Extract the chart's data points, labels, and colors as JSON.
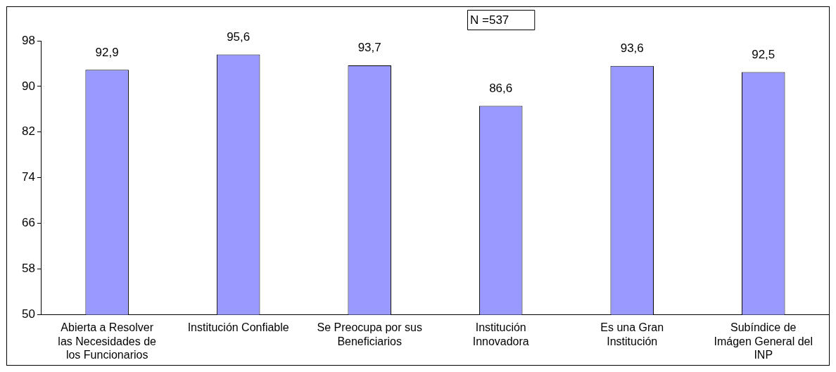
{
  "chart_data": {
    "type": "bar",
    "categories": [
      "Abierta a Resolver las Necesidades de los Funcionarios",
      "Institución Confiable",
      "Se Preocupa por sus Beneficiarios",
      "Institución Innovadora",
      "Es una Gran Institución",
      "Subíndice de Imágen General del INP"
    ],
    "values": [
      92.9,
      95.6,
      93.7,
      86.6,
      93.6,
      92.5
    ],
    "value_labels": [
      "92,9",
      "95,6",
      "93,7",
      "86,6",
      "93,6",
      "92,5"
    ],
    "color": "#9999ff",
    "ylim": [
      50,
      98
    ],
    "yticks": [
      50,
      58,
      66,
      74,
      82,
      90,
      98
    ],
    "grid": false,
    "legend": false,
    "annotations": [
      "N =537"
    ]
  }
}
